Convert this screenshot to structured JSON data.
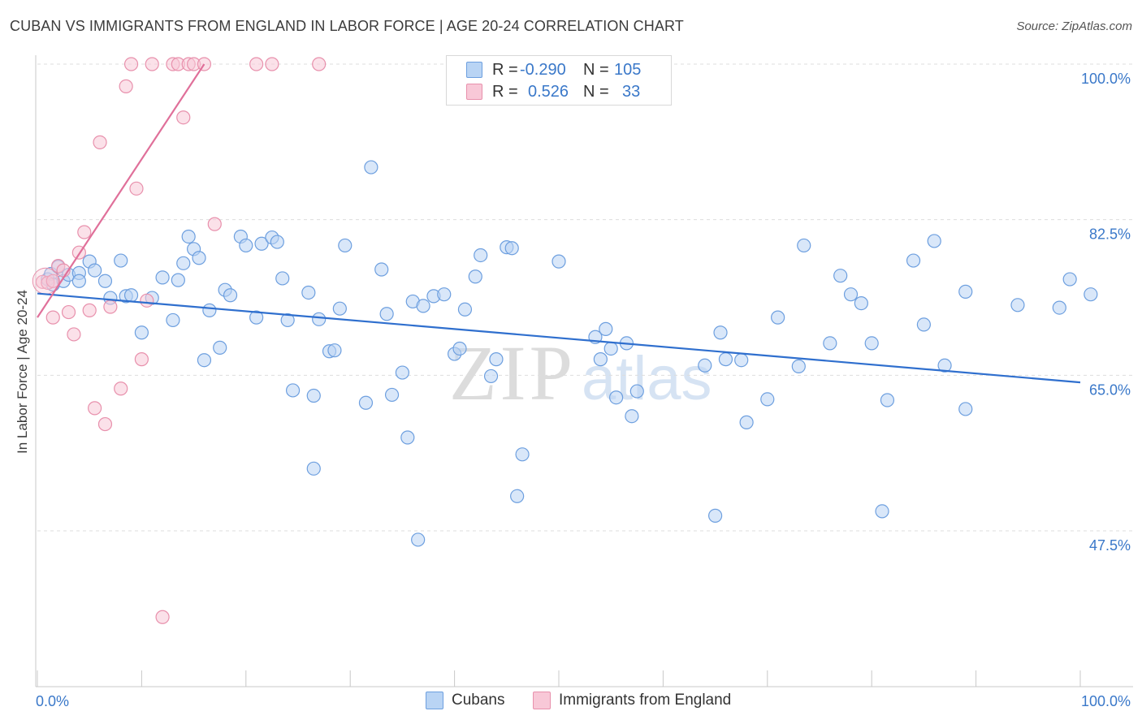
{
  "title": "CUBAN VS IMMIGRANTS FROM ENGLAND IN LABOR FORCE | AGE 20-24 CORRELATION CHART",
  "source": "Source: ZipAtlas.com",
  "watermark": {
    "zip": "ZIP",
    "atlas": "atlas"
  },
  "legend": {
    "r_label": "R =",
    "n_label": "N =",
    "rows": [
      {
        "r": "-0.290",
        "n": "105"
      },
      {
        "r": "0.526",
        "n": "33"
      }
    ]
  },
  "chart_data": {
    "type": "scatter",
    "ylabel": "In Labor Force | Age 20-24",
    "xlim": [
      0,
      100
    ],
    "ylim": [
      30,
      102
    ],
    "x_tick_labels": [
      "0.0%",
      "100.0%"
    ],
    "y_ticks": [
      47.5,
      65.0,
      82.5,
      100.0
    ],
    "y_tick_labels": [
      "47.5%",
      "65.0%",
      "82.5%",
      "100.0%"
    ],
    "grid": "horizontal dashed",
    "colors": {
      "cubans_fill": "#b9d4f4",
      "cubans_stroke": "#6d9fdf",
      "cubans_line": "#2f6fce",
      "england_fill": "#f8c8d7",
      "england_stroke": "#e890ac",
      "england_line": "#e0709a",
      "tick_label": "#3a78c9"
    },
    "series": [
      {
        "name": "Cubans",
        "trend": {
          "x": [
            0,
            100
          ],
          "y": [
            74.2,
            64.2
          ]
        },
        "points": [
          [
            1,
            75.8
          ],
          [
            1.3,
            76.4
          ],
          [
            1.5,
            75.2
          ],
          [
            2,
            77.2
          ],
          [
            2.5,
            75.6
          ],
          [
            3,
            76.3
          ],
          [
            4,
            76.5
          ],
          [
            4,
            75.6
          ],
          [
            5,
            77.8
          ],
          [
            5.5,
            76.8
          ],
          [
            6.5,
            75.6
          ],
          [
            7,
            73.7
          ],
          [
            8,
            77.9
          ],
          [
            8.5,
            73.9
          ],
          [
            9,
            74.0
          ],
          [
            10,
            69.8
          ],
          [
            11,
            73.7
          ],
          [
            12,
            76.0
          ],
          [
            13,
            71.2
          ],
          [
            13.5,
            75.7
          ],
          [
            14,
            77.6
          ],
          [
            14.5,
            80.6
          ],
          [
            15,
            79.2
          ],
          [
            15.5,
            78.2
          ],
          [
            16,
            66.7
          ],
          [
            16.5,
            72.3
          ],
          [
            17.5,
            68.1
          ],
          [
            18,
            74.6
          ],
          [
            18.5,
            74.0
          ],
          [
            19.5,
            80.6
          ],
          [
            20,
            79.6
          ],
          [
            21,
            71.5
          ],
          [
            21.5,
            79.8
          ],
          [
            22.5,
            80.5
          ],
          [
            23,
            80.0
          ],
          [
            23.5,
            75.9
          ],
          [
            24,
            71.2
          ],
          [
            24.5,
            63.3
          ],
          [
            26,
            74.3
          ],
          [
            26.5,
            62.7
          ],
          [
            26.5,
            54.5
          ],
          [
            27,
            71.3
          ],
          [
            28,
            67.7
          ],
          [
            28.5,
            67.8
          ],
          [
            29,
            72.5
          ],
          [
            29.5,
            79.6
          ],
          [
            31.5,
            61.9
          ],
          [
            32,
            88.4
          ],
          [
            33,
            76.9
          ],
          [
            33.5,
            71.9
          ],
          [
            34,
            62.8
          ],
          [
            35,
            65.3
          ],
          [
            35.5,
            58.0
          ],
          [
            36,
            73.3
          ],
          [
            36.5,
            46.5
          ],
          [
            37,
            72.8
          ],
          [
            38,
            73.9
          ],
          [
            39,
            74.1
          ],
          [
            40,
            67.4
          ],
          [
            40.5,
            68.0
          ],
          [
            41,
            72.4
          ],
          [
            42,
            76.1
          ],
          [
            42.5,
            78.5
          ],
          [
            43.5,
            64.9
          ],
          [
            44,
            66.8
          ],
          [
            45,
            79.4
          ],
          [
            45.5,
            79.3
          ],
          [
            46,
            51.4
          ],
          [
            46.5,
            56.1
          ],
          [
            50,
            77.8
          ],
          [
            53.5,
            69.3
          ],
          [
            54,
            66.8
          ],
          [
            54.5,
            70.2
          ],
          [
            55,
            68.0
          ],
          [
            55.5,
            62.5
          ],
          [
            56.5,
            68.6
          ],
          [
            57,
            60.4
          ],
          [
            57.5,
            63.2
          ],
          [
            64,
            66.1
          ],
          [
            65,
            49.2
          ],
          [
            65.5,
            69.8
          ],
          [
            66,
            66.8
          ],
          [
            67.5,
            66.7
          ],
          [
            68,
            59.7
          ],
          [
            70,
            62.3
          ],
          [
            71,
            71.5
          ],
          [
            73,
            66.0
          ],
          [
            73.5,
            79.6
          ],
          [
            76,
            68.6
          ],
          [
            77,
            76.2
          ],
          [
            78,
            74.1
          ],
          [
            79,
            73.1
          ],
          [
            80,
            68.6
          ],
          [
            81,
            49.7
          ],
          [
            81.5,
            62.2
          ],
          [
            84,
            77.9
          ],
          [
            85,
            70.7
          ],
          [
            86,
            80.1
          ],
          [
            87,
            66.1
          ],
          [
            89,
            61.2
          ],
          [
            89,
            74.4
          ],
          [
            94,
            72.9
          ],
          [
            98,
            72.6
          ],
          [
            99,
            75.8
          ],
          [
            101,
            74.1
          ]
        ]
      },
      {
        "name": "Immigrants from England",
        "trend": {
          "x": [
            0,
            16
          ],
          "y": [
            71.5,
            100.0
          ]
        },
        "points": [
          [
            0.5,
            75.5
          ],
          [
            1,
            75.4
          ],
          [
            1.5,
            71.5
          ],
          [
            1.5,
            75.6
          ],
          [
            2,
            77.3
          ],
          [
            2.5,
            76.8
          ],
          [
            3,
            72.1
          ],
          [
            3.5,
            69.6
          ],
          [
            4,
            78.8
          ],
          [
            4.5,
            81.1
          ],
          [
            5,
            72.3
          ],
          [
            5.5,
            61.3
          ],
          [
            6,
            91.2
          ],
          [
            6.5,
            59.5
          ],
          [
            7,
            72.7
          ],
          [
            8,
            63.5
          ],
          [
            8.5,
            97.5
          ],
          [
            9,
            100
          ],
          [
            9.5,
            86.0
          ],
          [
            10,
            66.8
          ],
          [
            10.5,
            73.4
          ],
          [
            11,
            100
          ],
          [
            12,
            37.8
          ],
          [
            13,
            100
          ],
          [
            13.5,
            100
          ],
          [
            14,
            94.0
          ],
          [
            14.5,
            100
          ],
          [
            15,
            100
          ],
          [
            16,
            100
          ],
          [
            17,
            82.0
          ],
          [
            21,
            100
          ],
          [
            22.5,
            100
          ],
          [
            27,
            100
          ]
        ]
      }
    ]
  }
}
